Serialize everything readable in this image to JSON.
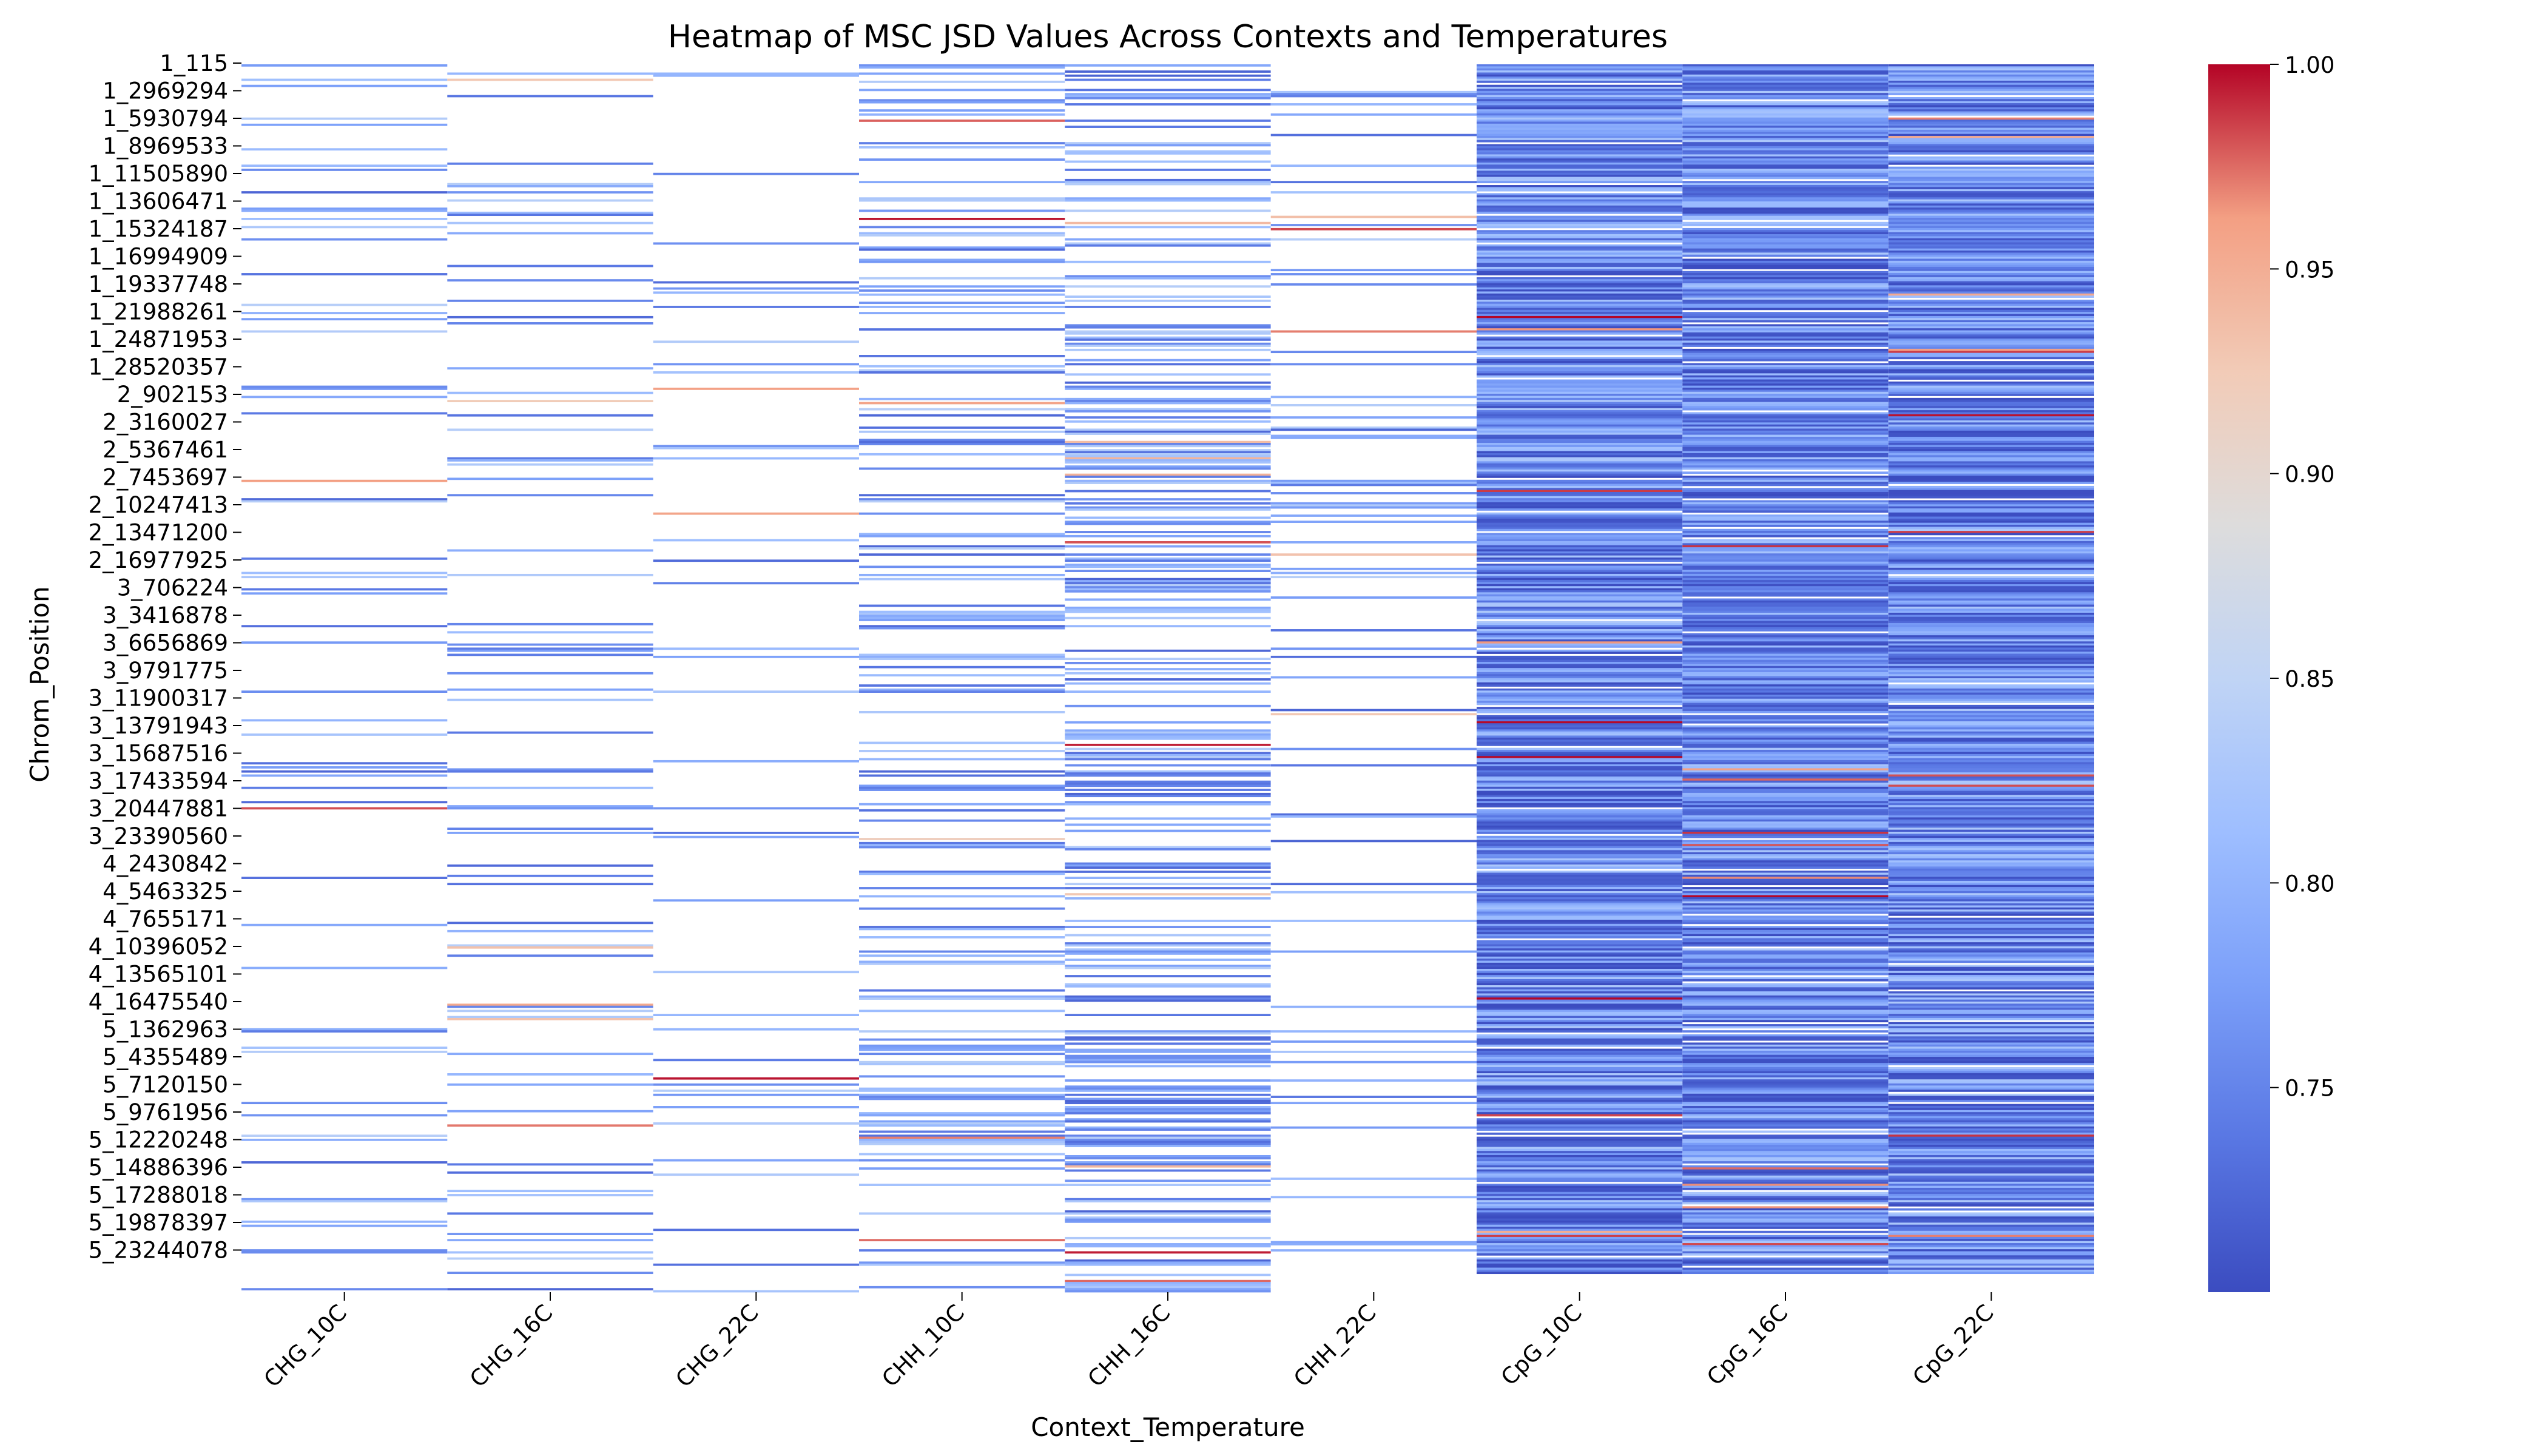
{
  "chart_data": {
    "type": "heatmap",
    "title": "Heatmap of MSC JSD Values Across Contexts and Temperatures",
    "xlabel": "Context_Temperature",
    "ylabel": "Chrom_Position",
    "x_categories": [
      "CHG_10C",
      "CHG_16C",
      "CHG_22C",
      "CHH_10C",
      "CHH_16C",
      "CHH_22C",
      "CpG_10C",
      "CpG_16C",
      "CpG_22C"
    ],
    "y_tick_labels": [
      "1_115",
      "1_2969294",
      "1_5930794",
      "1_8969533",
      "1_11505890",
      "1_13606471",
      "1_15324187",
      "1_16994909",
      "1_19337748",
      "1_21988261",
      "1_24871953",
      "1_28520357",
      "2_902153",
      "2_3160027",
      "2_5367461",
      "2_7453697",
      "2_10247413",
      "2_13471200",
      "2_16977925",
      "3_706224",
      "3_3416878",
      "3_6656869",
      "3_9791775",
      "3_11900317",
      "3_13791943",
      "3_15687516",
      "3_17433594",
      "3_20447881",
      "3_23390560",
      "4_2430842",
      "4_5463325",
      "4_7655171",
      "4_10396052",
      "4_13565101",
      "4_16475540",
      "5_1362963",
      "5_4355489",
      "5_7120150",
      "5_9761956",
      "5_12220248",
      "5_14886396",
      "5_17288018",
      "5_19878397",
      "5_23244078"
    ],
    "colorbar": {
      "cmap": "coolwarm",
      "vmin": 0.7,
      "vmax": 1.0,
      "ticks": [
        "0.75",
        "0.80",
        "0.85",
        "0.90",
        "0.95",
        "1.00"
      ]
    },
    "column_density": [
      0.1,
      0.12,
      0.06,
      0.22,
      0.35,
      0.14,
      0.95,
      0.93,
      0.95
    ],
    "missing_regions": [
      [
        0.985,
        1.0,
        [
          6,
          7,
          8
        ]
      ]
    ]
  }
}
